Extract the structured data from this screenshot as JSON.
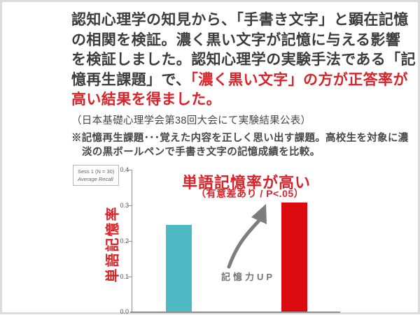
{
  "intro": {
    "lines": [
      {
        "black": "認知心理学の知見から、「手書き文字」と顕在記憶",
        "red": ""
      },
      {
        "black": "の相関を検証。濃く黒い文字が記憶に与える影響",
        "red": ""
      },
      {
        "black": "を検証しました。認知心理学の実験手法である「記",
        "red": ""
      },
      {
        "black": "憶再生課題」で、",
        "red": "「濃く黒い文字」の方が正答率が"
      },
      {
        "black": "",
        "red": "高い結果を得ました。"
      }
    ]
  },
  "source_note": "（日本基礎心理学会第38回大会にて実験結果公表）",
  "footnote": {
    "line1": "※記憶再生課題･･･覚えた内容を正しく思い出す課題。高校生を対象に濃",
    "line2": "淡の黒ボールペンで手書き文字の記憶成績を比較。"
  },
  "chart_data": {
    "type": "bar",
    "title": "単語記憶率が高い",
    "subtitle": "（有意差あり / P<.05）",
    "ylabel": "単語記憶率",
    "legend_lines": [
      "Sess 1 (N = 30)",
      "Average Recall"
    ],
    "legend_position": "top-left",
    "values": [
      0.243,
      0.305
    ],
    "bar_colors": [
      "#4FB9C4",
      "#DB0A10"
    ],
    "ylim": [
      0,
      0.4
    ],
    "ytick_labels": [
      "0.0",
      "0.1",
      "0.2",
      "0.3",
      "0.4"
    ],
    "grid": false,
    "annotation": "記憶力UP",
    "accent_red": "#D9232A",
    "axis_color": "#8E8E8E"
  }
}
